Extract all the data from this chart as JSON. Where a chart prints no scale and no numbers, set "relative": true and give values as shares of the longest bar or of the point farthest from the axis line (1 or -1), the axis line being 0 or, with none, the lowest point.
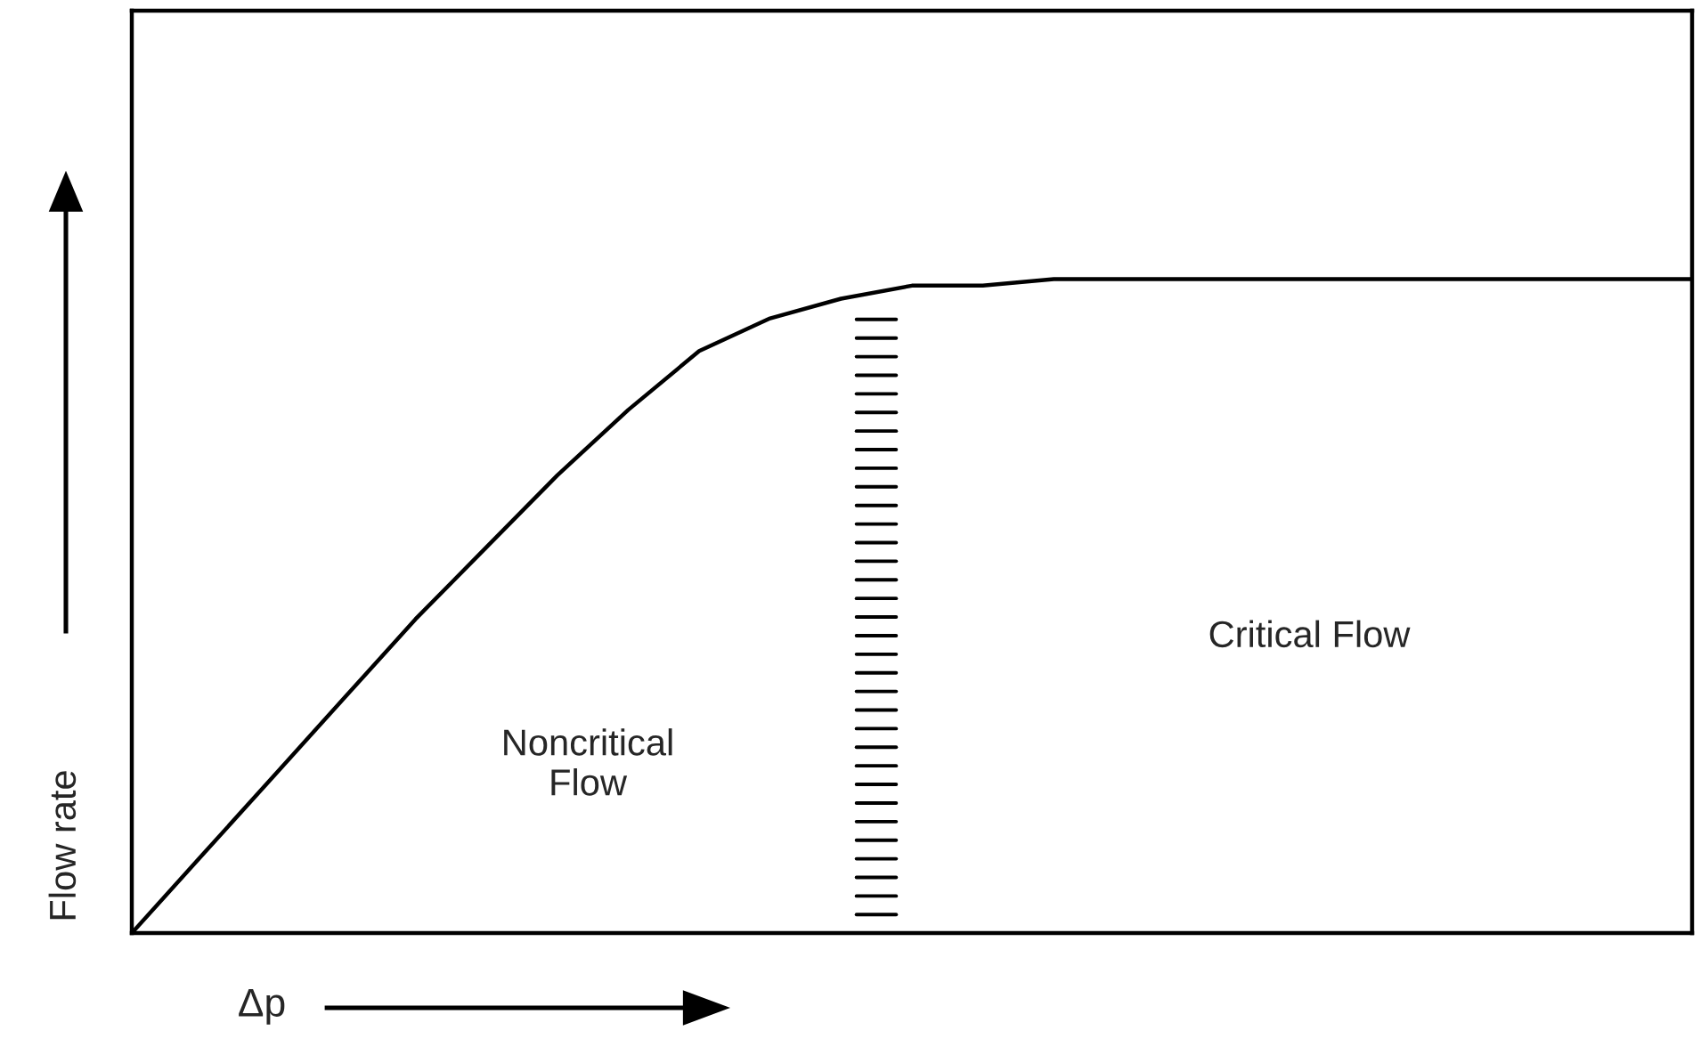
{
  "chart_data": {
    "type": "line",
    "relative": true,
    "xlabel": "Δp",
    "ylabel": "Flow rate",
    "categories": [
      null,
      null,
      null,
      null,
      null,
      null,
      null,
      null,
      null,
      null,
      null,
      null,
      null,
      null,
      null,
      null,
      null,
      null,
      null,
      null,
      null,
      null,
      null
    ],
    "series": [
      {
        "color": "#000000",
        "values": [
          0,
          0.12,
          0.24,
          0.36,
          0.48,
          0.59,
          0.7,
          0.8,
          0.89,
          0.94,
          0.97,
          0.99,
          0.99,
          1,
          1,
          1,
          1,
          1,
          1,
          1,
          1,
          1,
          1
        ]
      }
    ],
    "annotations": [
      "Noncritical\nFlow",
      "Critical Flow"
    ],
    "legend": false
  }
}
